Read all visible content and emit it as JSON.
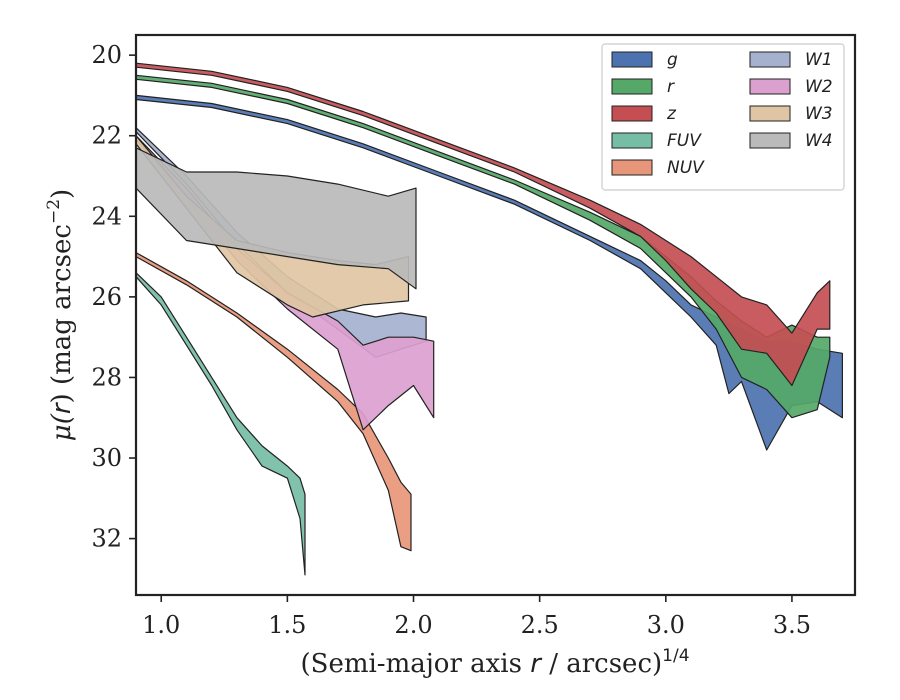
{
  "chart_data": {
    "type": "area",
    "xlabel_main": "(Semi-major axis ",
    "xlabel_var": "r",
    "xlabel_tail": " / arcsec)",
    "xlabel_exp": "1/4",
    "ylabel_mu": "μ(",
    "ylabel_var": "r",
    "ylabel_tail": ") (mag arcsec",
    "ylabel_exp": "−2",
    "ylabel_close": ")",
    "xlim": [
      0.9,
      3.75
    ],
    "ylim": [
      33.4,
      19.5
    ],
    "y_inverted": true,
    "xticks": [
      1.0,
      1.5,
      2.0,
      2.5,
      3.0,
      3.5
    ],
    "xtick_labels": [
      "1.0",
      "1.5",
      "2.0",
      "2.5",
      "3.0",
      "3.5"
    ],
    "yticks": [
      20,
      22,
      24,
      26,
      28,
      30,
      32
    ],
    "ytick_labels": [
      "20",
      "22",
      "24",
      "26",
      "28",
      "30",
      "32"
    ],
    "legend_placement": "top-right",
    "legend_columns": 2,
    "series": [
      {
        "name": "g",
        "color": "#4c72b0",
        "draw_order": 1,
        "upper": [
          [
            0.9,
            21.0
          ],
          [
            1.2,
            21.2
          ],
          [
            1.5,
            21.6
          ],
          [
            1.8,
            22.2
          ],
          [
            2.1,
            22.9
          ],
          [
            2.4,
            23.6
          ],
          [
            2.7,
            24.5
          ],
          [
            2.9,
            25.1
          ],
          [
            3.0,
            25.6
          ],
          [
            3.1,
            26.2
          ],
          [
            3.2,
            26.5
          ],
          [
            3.3,
            26.8
          ],
          [
            3.4,
            27.1
          ],
          [
            3.5,
            27.1
          ],
          [
            3.6,
            27.3
          ],
          [
            3.7,
            27.4
          ]
        ],
        "lower": [
          [
            0.9,
            21.1
          ],
          [
            1.2,
            21.3
          ],
          [
            1.5,
            21.7
          ],
          [
            1.8,
            22.3
          ],
          [
            2.1,
            23.0
          ],
          [
            2.4,
            23.7
          ],
          [
            2.7,
            24.6
          ],
          [
            2.9,
            25.3
          ],
          [
            3.0,
            25.9
          ],
          [
            3.1,
            26.5
          ],
          [
            3.2,
            27.2
          ],
          [
            3.25,
            28.4
          ],
          [
            3.3,
            28.1
          ],
          [
            3.4,
            29.8
          ],
          [
            3.5,
            28.7
          ],
          [
            3.6,
            28.6
          ],
          [
            3.7,
            29.0
          ]
        ]
      },
      {
        "name": "r",
        "color": "#55a868",
        "draw_order": 2,
        "upper": [
          [
            0.9,
            20.5
          ],
          [
            1.2,
            20.7
          ],
          [
            1.5,
            21.1
          ],
          [
            1.8,
            21.7
          ],
          [
            2.1,
            22.4
          ],
          [
            2.4,
            23.1
          ],
          [
            2.7,
            23.9
          ],
          [
            2.9,
            24.5
          ],
          [
            3.0,
            25.0
          ],
          [
            3.1,
            25.5
          ],
          [
            3.2,
            26.1
          ],
          [
            3.3,
            26.6
          ],
          [
            3.4,
            27.0
          ],
          [
            3.5,
            26.7
          ],
          [
            3.6,
            27.0
          ],
          [
            3.65,
            27.0
          ]
        ],
        "lower": [
          [
            0.9,
            20.6
          ],
          [
            1.2,
            20.8
          ],
          [
            1.5,
            21.2
          ],
          [
            1.8,
            21.8
          ],
          [
            2.1,
            22.5
          ],
          [
            2.4,
            23.2
          ],
          [
            2.7,
            24.1
          ],
          [
            2.9,
            24.8
          ],
          [
            3.0,
            25.4
          ],
          [
            3.1,
            26.0
          ],
          [
            3.2,
            26.8
          ],
          [
            3.3,
            28.0
          ],
          [
            3.4,
            28.3
          ],
          [
            3.5,
            29.0
          ],
          [
            3.6,
            28.8
          ],
          [
            3.65,
            27.5
          ]
        ]
      },
      {
        "name": "z",
        "color": "#c44e52",
        "draw_order": 3,
        "upper": [
          [
            0.9,
            20.2
          ],
          [
            1.2,
            20.4
          ],
          [
            1.5,
            20.8
          ],
          [
            1.8,
            21.4
          ],
          [
            2.1,
            22.1
          ],
          [
            2.4,
            22.8
          ],
          [
            2.7,
            23.6
          ],
          [
            2.9,
            24.2
          ],
          [
            3.0,
            24.6
          ],
          [
            3.1,
            25.0
          ],
          [
            3.2,
            25.5
          ],
          [
            3.3,
            26.0
          ],
          [
            3.4,
            26.2
          ],
          [
            3.5,
            26.9
          ],
          [
            3.6,
            25.9
          ],
          [
            3.65,
            25.6
          ]
        ],
        "lower": [
          [
            0.9,
            20.3
          ],
          [
            1.2,
            20.5
          ],
          [
            1.5,
            20.9
          ],
          [
            1.8,
            21.5
          ],
          [
            2.1,
            22.2
          ],
          [
            2.4,
            22.9
          ],
          [
            2.7,
            23.8
          ],
          [
            2.9,
            24.5
          ],
          [
            3.0,
            25.1
          ],
          [
            3.1,
            25.8
          ],
          [
            3.2,
            26.4
          ],
          [
            3.3,
            27.3
          ],
          [
            3.4,
            27.4
          ],
          [
            3.5,
            28.2
          ],
          [
            3.6,
            26.8
          ],
          [
            3.65,
            26.8
          ]
        ]
      },
      {
        "name": "FUV",
        "color": "#76bda5",
        "draw_order": 4,
        "upper": [
          [
            0.9,
            25.4
          ],
          [
            1.0,
            26.0
          ],
          [
            1.1,
            27.0
          ],
          [
            1.2,
            28.0
          ],
          [
            1.3,
            29.0
          ],
          [
            1.4,
            29.7
          ],
          [
            1.5,
            30.2
          ],
          [
            1.55,
            30.5
          ],
          [
            1.57,
            30.9
          ]
        ],
        "lower": [
          [
            0.9,
            25.5
          ],
          [
            1.0,
            26.2
          ],
          [
            1.1,
            27.2
          ],
          [
            1.2,
            28.2
          ],
          [
            1.3,
            29.3
          ],
          [
            1.4,
            30.2
          ],
          [
            1.5,
            30.5
          ],
          [
            1.55,
            31.5
          ],
          [
            1.57,
            32.9
          ]
        ]
      },
      {
        "name": "NUV",
        "color": "#e8967a",
        "draw_order": 5,
        "upper": [
          [
            0.9,
            24.9
          ],
          [
            1.1,
            25.6
          ],
          [
            1.3,
            26.4
          ],
          [
            1.5,
            27.3
          ],
          [
            1.7,
            28.3
          ],
          [
            1.8,
            28.9
          ],
          [
            1.9,
            30.0
          ],
          [
            1.95,
            30.6
          ],
          [
            1.99,
            30.9
          ]
        ],
        "lower": [
          [
            0.9,
            25.0
          ],
          [
            1.1,
            25.7
          ],
          [
            1.3,
            26.5
          ],
          [
            1.5,
            27.5
          ],
          [
            1.7,
            28.6
          ],
          [
            1.8,
            29.4
          ],
          [
            1.9,
            30.8
          ],
          [
            1.95,
            32.2
          ],
          [
            1.99,
            32.3
          ]
        ]
      },
      {
        "name": "W1",
        "color": "#a5b1cf",
        "draw_order": 6,
        "upper": [
          [
            0.9,
            21.8
          ],
          [
            1.1,
            23.0
          ],
          [
            1.3,
            24.4
          ],
          [
            1.5,
            25.5
          ],
          [
            1.7,
            26.3
          ],
          [
            1.85,
            26.5
          ],
          [
            1.95,
            26.4
          ],
          [
            2.05,
            26.5
          ]
        ],
        "lower": [
          [
            0.9,
            21.9
          ],
          [
            1.1,
            23.2
          ],
          [
            1.3,
            24.7
          ],
          [
            1.5,
            25.9
          ],
          [
            1.7,
            26.8
          ],
          [
            1.85,
            27.5
          ],
          [
            1.95,
            27.3
          ],
          [
            2.05,
            27.1
          ]
        ]
      },
      {
        "name": "W2",
        "color": "#dca0cf",
        "draw_order": 7,
        "upper": [
          [
            0.9,
            22.0
          ],
          [
            1.1,
            23.3
          ],
          [
            1.3,
            24.8
          ],
          [
            1.5,
            25.9
          ],
          [
            1.7,
            26.6
          ],
          [
            1.8,
            27.2
          ],
          [
            1.9,
            27.0
          ],
          [
            2.0,
            27.0
          ],
          [
            2.08,
            27.1
          ]
        ],
        "lower": [
          [
            0.9,
            22.1
          ],
          [
            1.1,
            23.5
          ],
          [
            1.3,
            25.1
          ],
          [
            1.5,
            26.3
          ],
          [
            1.7,
            27.3
          ],
          [
            1.8,
            29.3
          ],
          [
            1.9,
            28.7
          ],
          [
            2.0,
            28.2
          ],
          [
            2.08,
            29.0
          ]
        ]
      },
      {
        "name": "W3",
        "color": "#dfc5a3",
        "draw_order": 8,
        "upper": [
          [
            0.9,
            22.0
          ],
          [
            1.1,
            23.5
          ],
          [
            1.3,
            24.6
          ],
          [
            1.5,
            24.9
          ],
          [
            1.7,
            25.1
          ],
          [
            1.85,
            25.2
          ],
          [
            1.98,
            25.0
          ]
        ],
        "lower": [
          [
            0.9,
            22.2
          ],
          [
            1.1,
            23.8
          ],
          [
            1.3,
            25.4
          ],
          [
            1.5,
            26.2
          ],
          [
            1.6,
            26.5
          ],
          [
            1.8,
            26.2
          ],
          [
            1.98,
            26.1
          ]
        ]
      },
      {
        "name": "W4",
        "color": "#bababa",
        "draw_order": 9,
        "upper": [
          [
            0.9,
            22.3
          ],
          [
            1.1,
            22.9
          ],
          [
            1.3,
            22.9
          ],
          [
            1.5,
            23.0
          ],
          [
            1.7,
            23.2
          ],
          [
            1.9,
            23.5
          ],
          [
            2.01,
            23.3
          ]
        ],
        "lower": [
          [
            0.9,
            23.3
          ],
          [
            1.1,
            24.6
          ],
          [
            1.3,
            24.8
          ],
          [
            1.5,
            25.0
          ],
          [
            1.7,
            25.2
          ],
          [
            1.9,
            25.3
          ],
          [
            2.01,
            25.8
          ]
        ]
      }
    ]
  }
}
